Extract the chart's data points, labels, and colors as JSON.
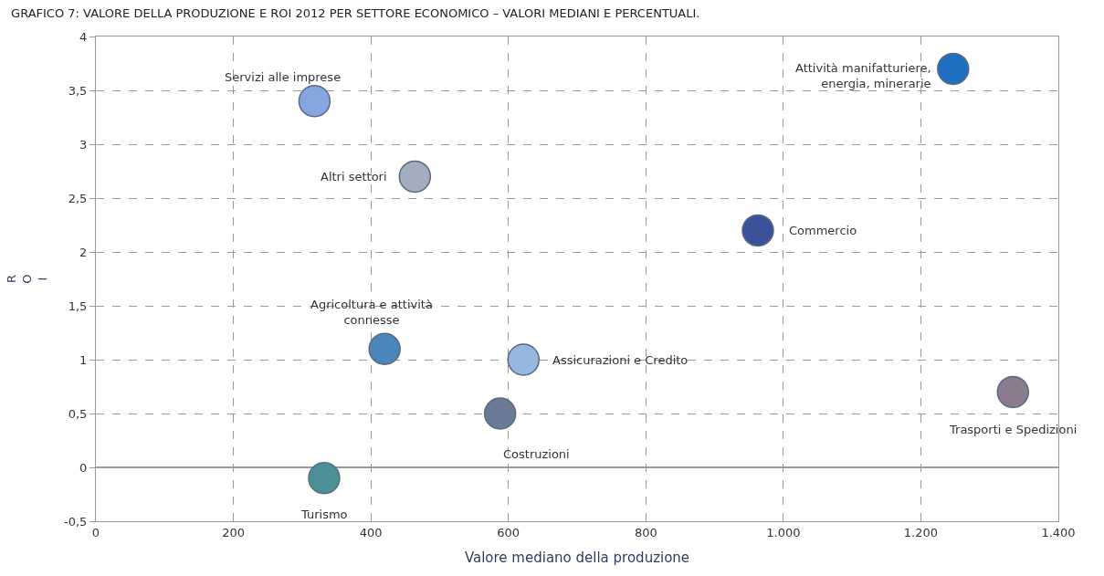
{
  "chart_data": {
    "type": "scatter",
    "title": "GRAFICO 7: VALORE DELLA PRODUZIONE E ROI 2012 PER SETTORE ECONOMICO – VALORI MEDIANI E PERCENTUALI.",
    "xlabel": "Valore mediano della produzione",
    "ylabel": "ROI",
    "x": [
      318,
      464,
      1247,
      963,
      420,
      622,
      588,
      1334,
      332
    ],
    "values": [
      3.4,
      2.7,
      3.7,
      2.2,
      1.1,
      1.0,
      0.5,
      0.7,
      -0.1
    ],
    "colors": [
      "#86a6e0",
      "#a3adbd",
      "#1f6fc0",
      "#3b519a",
      "#4a86bb",
      "#95b7e0",
      "#6b7a94",
      "#8c7b8e",
      "#4a9095"
    ],
    "marker": "circle",
    "annotations": [
      {
        "text": "Servizi alle imprese",
        "x": 318,
        "y": 3.4
      },
      {
        "text": "Altri settori",
        "x": 464,
        "y": 2.7
      },
      {
        "text": "Attività manifatturiere,\nenergia, minerarie",
        "x": 1247,
        "y": 3.7
      },
      {
        "text": "Commercio",
        "x": 963,
        "y": 2.2
      },
      {
        "text": "Agricoltura e attività\nconnesse",
        "x": 420,
        "y": 1.1
      },
      {
        "text": "Assicurazioni e Credito",
        "x": 622,
        "y": 1.0
      },
      {
        "text": "Costruzioni",
        "x": 588,
        "y": 0.5
      },
      {
        "text": "Trasporti e Spedizioni",
        "x": 1334,
        "y": 0.7
      },
      {
        "text": "Turismo",
        "x": 332,
        "y": -0.1
      }
    ],
    "xlim": [
      0,
      1400
    ],
    "xticks": [
      0,
      200,
      400,
      600,
      800,
      {
        "value": 1000,
        "label": "1.000"
      },
      {
        "value": 1200,
        "label": "1.200"
      },
      {
        "value": 1400,
        "label": "1.400"
      }
    ],
    "ylim": [
      -0.5,
      4
    ],
    "yticks": [
      {
        "value": -0.5,
        "label": "-0,5"
      },
      0,
      {
        "value": 0.5,
        "label": "0,5"
      },
      1,
      {
        "value": 1.5,
        "label": "1,5"
      },
      2,
      {
        "value": 2.5,
        "label": "2,5"
      },
      3,
      {
        "value": 3.5,
        "label": "3,5"
      },
      4
    ],
    "grid": true
  }
}
